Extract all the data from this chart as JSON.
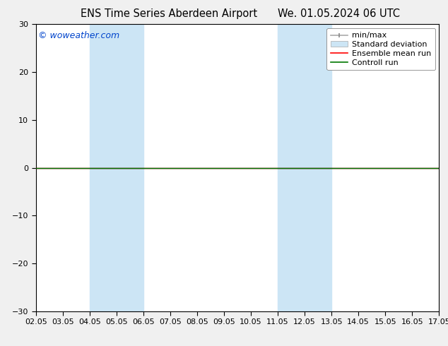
{
  "title_left": "ENS Time Series Aberdeen Airport",
  "title_right": "We. 01.05.2024 06 UTC",
  "watermark": "© woweather.com",
  "watermark_color": "#0044cc",
  "ylim": [
    -30,
    30
  ],
  "yticks": [
    -30,
    -20,
    -10,
    0,
    10,
    20,
    30
  ],
  "xtick_labels": [
    "02.05",
    "03.05",
    "04.05",
    "05.05",
    "06.05",
    "07.05",
    "08.05",
    "09.05",
    "10.05",
    "11.05",
    "12.05",
    "13.05",
    "14.05",
    "15.05",
    "16.05",
    "17.05"
  ],
  "xtick_positions": [
    2,
    3,
    4,
    5,
    6,
    7,
    8,
    9,
    10,
    11,
    12,
    13,
    14,
    15,
    16,
    17
  ],
  "xlim": [
    2,
    17
  ],
  "shaded_bands": [
    {
      "xstart": 4.0,
      "xend": 5.0,
      "color": "#cce5f5"
    },
    {
      "xstart": 5.0,
      "xend": 6.0,
      "color": "#cce5f5"
    },
    {
      "xstart": 11.0,
      "xend": 12.0,
      "color": "#cce5f5"
    },
    {
      "xstart": 12.0,
      "xend": 13.0,
      "color": "#cce5f5"
    }
  ],
  "flat_line_color_red": "#ff0000",
  "flat_line_color_green": "#007700",
  "legend_entries": [
    {
      "label": "min/max",
      "color": "#888888",
      "style": "line"
    },
    {
      "label": "Standard deviation",
      "color": "#cce5f5",
      "style": "patch"
    },
    {
      "label": "Ensemble mean run",
      "color": "#ff0000",
      "style": "line"
    },
    {
      "label": "Controll run",
      "color": "#007700",
      "style": "line"
    }
  ],
  "bg_color": "#f0f0f0",
  "plot_bg_color": "#ffffff",
  "title_fontsize": 10.5,
  "tick_fontsize": 8,
  "legend_fontsize": 8,
  "watermark_fontsize": 9
}
